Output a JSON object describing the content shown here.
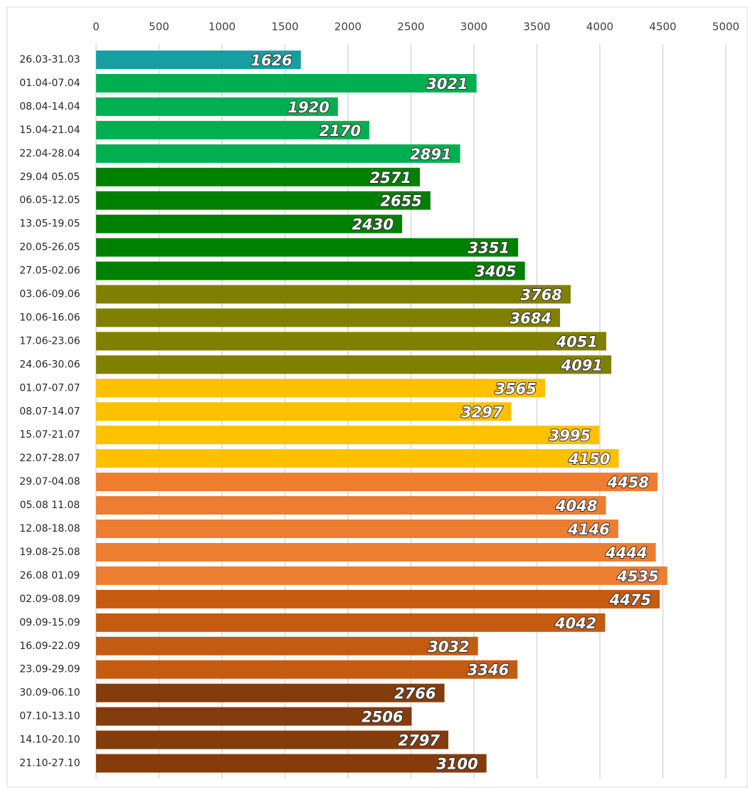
{
  "chart_data": {
    "type": "bar",
    "orientation": "horizontal",
    "categories": [
      "26.03-31.03",
      "01.04-07.04",
      "08.04-14.04",
      "15.04-21.04",
      "22.04-28.04",
      "29.04 05.05",
      "06.05-12.05",
      "13.05-19.05",
      "20.05-26.05",
      "27.05-02.06",
      "03.06-09.06",
      "10.06-16.06",
      "17.06-23.06",
      "24.06-30.06",
      "01.07-07.07",
      "08.07-14.07",
      "15.07-21.07",
      "22.07-28.07",
      "29.07-04.08",
      "05.08 11.08",
      "12.08-18.08",
      "19.08-25.08",
      "26.08 01.09",
      "02.09-08.09",
      "09.09-15.09",
      "16.09-22.09",
      "23.09-29.09",
      "30.09-06.10",
      "07.10-13.10",
      "14.10-20.10",
      "21.10-27.10"
    ],
    "values": [
      1626,
      3021,
      1920,
      2170,
      2891,
      2571,
      2655,
      2430,
      3351,
      3405,
      3768,
      3684,
      4051,
      4091,
      3565,
      3297,
      3995,
      4150,
      4458,
      4048,
      4146,
      4444,
      4535,
      4475,
      4042,
      3032,
      3346,
      2766,
      2506,
      2797,
      3100
    ],
    "colors": [
      "#169fa0",
      "#00b050",
      "#00b050",
      "#00b050",
      "#00b050",
      "#008000",
      "#008000",
      "#008000",
      "#008000",
      "#008000",
      "#808000",
      "#808000",
      "#808000",
      "#808000",
      "#ffc000",
      "#ffc000",
      "#ffc000",
      "#ffc000",
      "#ed7d31",
      "#ed7d31",
      "#ed7d31",
      "#ed7d31",
      "#ed7d31",
      "#c55a11",
      "#c55a11",
      "#c55a11",
      "#c55a11",
      "#843c0c",
      "#843c0c",
      "#843c0c",
      "#843c0c"
    ],
    "xlim": [
      0,
      5000
    ],
    "xticks": [
      0,
      500,
      1000,
      1500,
      2000,
      2500,
      3000,
      3500,
      4000,
      4500,
      5000
    ],
    "grid": true
  }
}
